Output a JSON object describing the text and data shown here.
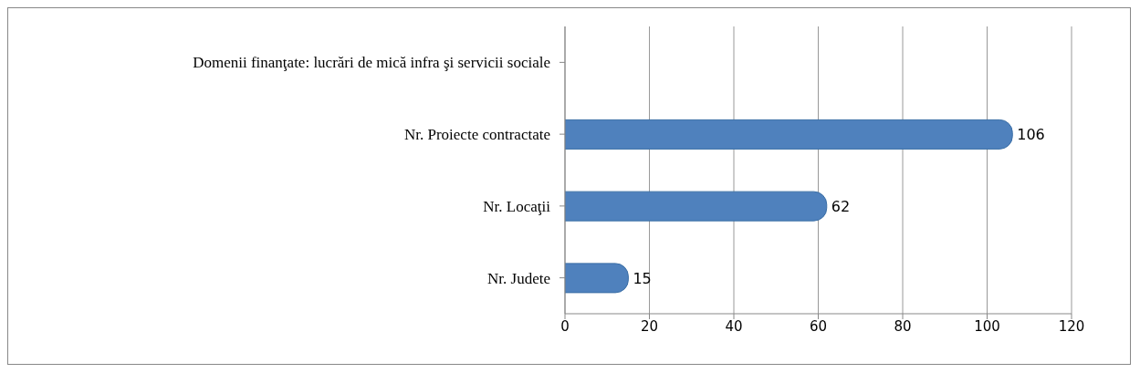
{
  "chart_data": {
    "type": "bar",
    "orientation": "horizontal",
    "categories": [
      "Domenii finanţate: lucrări de mică infra şi servicii sociale",
      "Nr. Proiecte contractate",
      "Nr. Locaţii",
      "Nr. Judete"
    ],
    "values": [
      null,
      106,
      62,
      15
    ],
    "color": "#4f81bd",
    "xlim": [
      0,
      120
    ],
    "xticks": [
      0,
      20,
      40,
      60,
      80,
      100,
      120
    ],
    "grid": "x",
    "data_labels": true
  }
}
